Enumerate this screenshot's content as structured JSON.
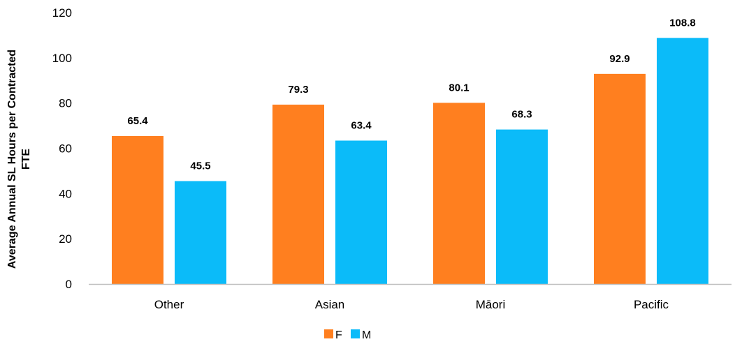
{
  "chart_data": {
    "type": "bar",
    "title": "",
    "ylabel_lines": [
      "Average Annual SL Hours per Contracted",
      "FTE"
    ],
    "xlabel": "",
    "categories": [
      "Other",
      "Asian",
      "Māori",
      "Pacific"
    ],
    "series": [
      {
        "name": "F",
        "color": "#FF7F1F",
        "values": [
          65.4,
          79.3,
          80.1,
          92.9
        ],
        "labels": [
          "65.4",
          "79.3",
          "80.1",
          "92.9"
        ]
      },
      {
        "name": "M",
        "color": "#0BBBF9",
        "values": [
          45.5,
          63.4,
          68.3,
          108.8
        ],
        "labels": [
          "45.5",
          "63.4",
          "68.3",
          "108.8"
        ]
      }
    ],
    "ylim": [
      0,
      120
    ],
    "yticks": [
      0,
      20,
      40,
      60,
      80,
      100,
      120
    ],
    "grid": false,
    "legend_position": "bottom-center"
  }
}
